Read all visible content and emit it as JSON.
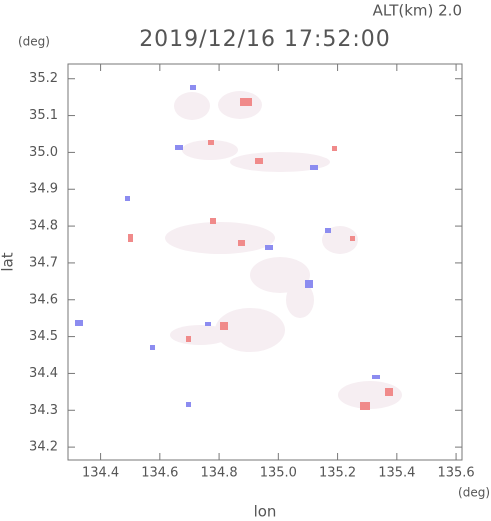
{
  "chart_data": {
    "type": "map",
    "title": "2019/12/16 17:52:00",
    "subtitle": "ALT(km) 2.0",
    "y_unit": "(deg)",
    "x_unit": "(deg)",
    "ylabel": "lat",
    "xlabel": "lon",
    "xlim": [
      134.29,
      135.62
    ],
    "xticks": [
      134.4,
      134.6,
      134.8,
      {
        "value": 135,
        "label": "135.0"
      },
      135.2,
      135.4,
      135.6
    ],
    "ylim": [
      34.165,
      35.24
    ],
    "yticks": [
      34.2,
      34.3,
      34.4,
      34.5,
      34.6,
      34.7,
      34.8,
      34.9,
      {
        "value": 35,
        "label": "35.0"
      },
      35.1,
      35.2
    ]
  }
}
